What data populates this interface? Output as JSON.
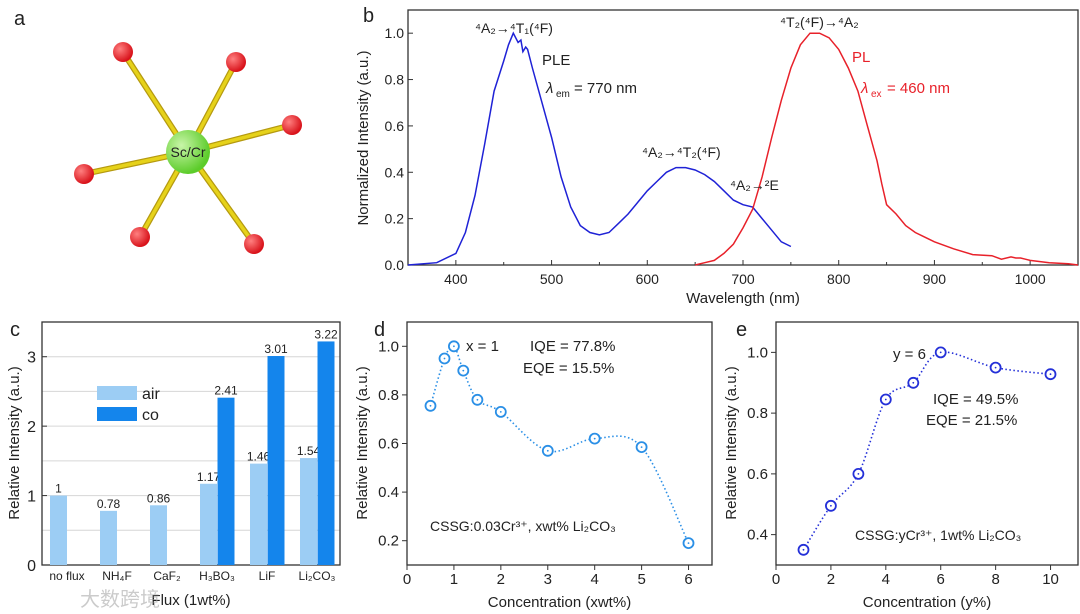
{
  "panel_labels": [
    "a",
    "b",
    "c",
    "d",
    "e"
  ],
  "panel_a": {
    "center_label": "Sc/Cr"
  },
  "watermark": "大数跨境",
  "colors": {
    "ple": "#1f22d6",
    "pl": "#e8212a",
    "air": "#9ccdf4",
    "co": "#1485ec",
    "d_series": "#2a8fe6",
    "e_series": "#2430d8",
    "center_atom": "#5ccc2a",
    "ligand_atom": "#d8121a",
    "bond": "#e6d21a"
  },
  "chart_data": [
    {
      "id": "b",
      "type": "line",
      "xlabel": "Wavelength (nm)",
      "ylabel": "Normalized Intensity (a.u.)",
      "xlim": [
        350,
        1050
      ],
      "ylim": [
        0,
        1.1
      ],
      "xticks": [
        400,
        500,
        600,
        700,
        800,
        900,
        1000
      ],
      "yticks": [
        "0.0",
        "0.2",
        "0.4",
        "0.6",
        "0.8",
        "1.0"
      ],
      "series": [
        {
          "name": "PLE",
          "x": [
            350,
            380,
            400,
            410,
            420,
            430,
            440,
            450,
            455,
            460,
            465,
            468,
            470,
            473,
            475,
            480,
            490,
            500,
            510,
            520,
            530,
            540,
            550,
            560,
            570,
            580,
            590,
            600,
            610,
            620,
            630,
            640,
            650,
            660,
            670,
            680,
            690,
            700,
            710,
            720,
            730,
            740,
            750
          ],
          "y": [
            0,
            0.01,
            0.05,
            0.14,
            0.3,
            0.52,
            0.75,
            0.88,
            0.95,
            1.0,
            0.96,
            0.97,
            0.92,
            0.94,
            0.93,
            0.85,
            0.7,
            0.55,
            0.38,
            0.25,
            0.17,
            0.14,
            0.13,
            0.14,
            0.18,
            0.22,
            0.27,
            0.32,
            0.36,
            0.4,
            0.42,
            0.42,
            0.41,
            0.39,
            0.36,
            0.32,
            0.28,
            0.26,
            0.25,
            0.2,
            0.15,
            0.1,
            0.08
          ]
        },
        {
          "name": "PL",
          "x": [
            650,
            660,
            670,
            680,
            690,
            700,
            710,
            720,
            730,
            740,
            750,
            760,
            770,
            780,
            790,
            800,
            810,
            820,
            830,
            840,
            845,
            850,
            860,
            870,
            880,
            890,
            900,
            920,
            940,
            960,
            970,
            980,
            985,
            990,
            995,
            1000,
            1020,
            1040,
            1050
          ],
          "y": [
            0,
            0.01,
            0.02,
            0.05,
            0.09,
            0.16,
            0.24,
            0.38,
            0.55,
            0.71,
            0.85,
            0.95,
            1.0,
            1.0,
            0.98,
            0.93,
            0.85,
            0.75,
            0.6,
            0.45,
            0.35,
            0.26,
            0.22,
            0.17,
            0.14,
            0.12,
            0.1,
            0.07,
            0.045,
            0.04,
            0.025,
            0.035,
            0.03,
            0.03,
            0.025,
            0.02,
            0.01,
            0.005,
            0
          ]
        }
      ],
      "annotations": {
        "ple_peak": "⁴A₂→⁴T₁(⁴F)",
        "ple_mid": "⁴A₂→⁴T₂(⁴F)",
        "ple_e": "⁴A₂→²E",
        "pl_peak": "⁴T₂(⁴F)→⁴A₂",
        "ple_name": "PLE",
        "pl_name": "PL",
        "lambda": "λ",
        "em_sub": "em",
        "em_value": "= 770 nm",
        "ex_sub": "ex",
        "ex_value": "= 460 nm"
      }
    },
    {
      "id": "c",
      "type": "bar",
      "xlabel": "Flux (1wt%)",
      "ylabel": "Relative Intensity (a.u.)",
      "ylim": [
        0,
        3.5
      ],
      "yticks": [
        "0",
        "1",
        "2",
        "3"
      ],
      "categories": [
        "no flux",
        "NH₄F",
        "CaF₂",
        "H₃BO₃",
        "LiF",
        "Li₂CO₃"
      ],
      "series": [
        {
          "name": "air",
          "values": [
            1,
            0.78,
            0.86,
            1.17,
            1.46,
            1.54
          ],
          "labels": [
            "1",
            "0.78",
            "0.86",
            "1.17",
            "1.46",
            "1.54"
          ]
        },
        {
          "name": "co",
          "values": [
            null,
            null,
            null,
            2.41,
            3.01,
            3.22
          ],
          "labels": [
            "",
            "",
            "",
            "2.41",
            "3.01",
            "3.22"
          ]
        }
      ],
      "legend": "top-left"
    },
    {
      "id": "d",
      "type": "scatter",
      "xlabel": "Concentration (xwt%)",
      "ylabel": "Relative Intensity (a.u.)",
      "xlim": [
        0,
        6.5
      ],
      "ylim": [
        0.1,
        1.1
      ],
      "xticks": [
        "0",
        "1",
        "2",
        "3",
        "4",
        "5",
        "6"
      ],
      "yticks": [
        "0.2",
        "0.4",
        "0.6",
        "0.8",
        "1.0"
      ],
      "x": [
        0.5,
        0.8,
        1,
        1.2,
        1.5,
        2,
        3,
        4,
        5,
        6
      ],
      "y": [
        0.755,
        0.95,
        1.0,
        0.9,
        0.78,
        0.73,
        0.57,
        0.62,
        0.585,
        0.19
      ],
      "annotations": {
        "optimum": "x = 1",
        "iqe": "IQE = 77.8%",
        "eqe": "EQE = 15.5%",
        "formula": "CSSG:0.03Cr³⁺, xwt% Li₂CO₃"
      }
    },
    {
      "id": "e",
      "type": "scatter",
      "xlabel": "Concentration (y%)",
      "ylabel": "Relative Intensity (a.u.)",
      "xlim": [
        0,
        11
      ],
      "ylim": [
        0.3,
        1.1
      ],
      "xticks": [
        "0",
        "2",
        "4",
        "6",
        "8",
        "10"
      ],
      "yticks": [
        "0.4",
        "0.6",
        "0.8",
        "1.0"
      ],
      "x": [
        1,
        2,
        3,
        4,
        5,
        6,
        8,
        10
      ],
      "y": [
        0.35,
        0.495,
        0.6,
        0.845,
        0.9,
        1.0,
        0.95,
        0.928
      ],
      "annotations": {
        "optimum": "y = 6",
        "iqe": "IQE = 49.5%",
        "eqe": "EQE = 21.5%",
        "formula": "CSSG:yCr³⁺, 1wt% Li₂CO₃"
      }
    }
  ]
}
